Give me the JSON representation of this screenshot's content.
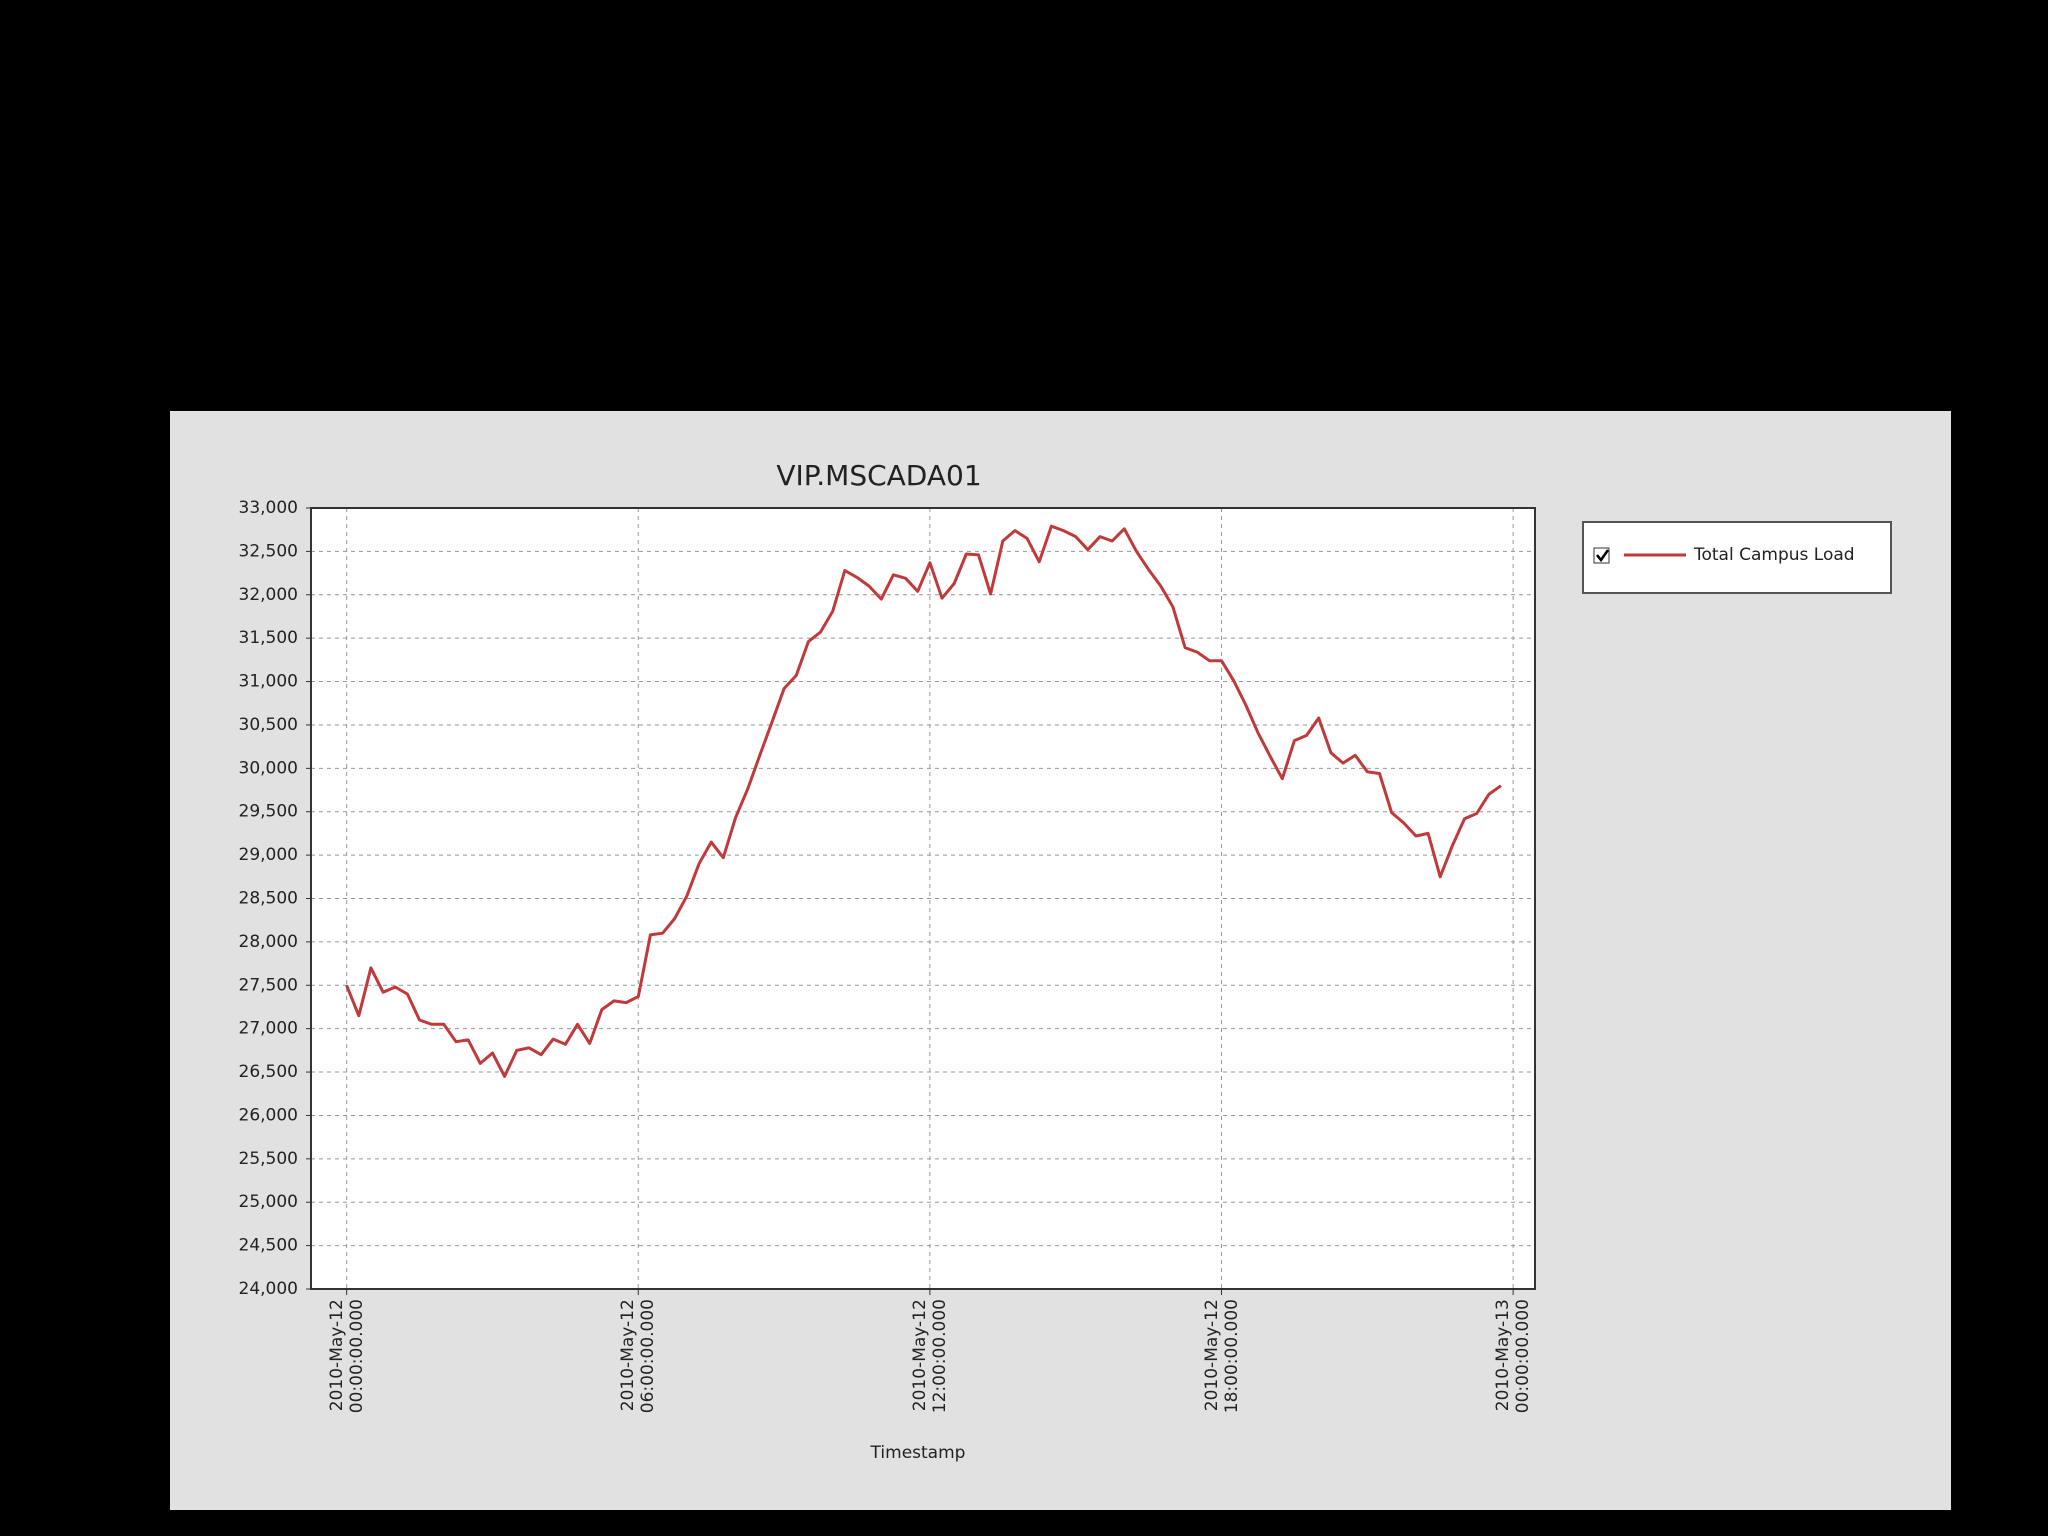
{
  "chart_data": {
    "type": "line",
    "title": "VIP.MSCADA01",
    "x_label": "Timestamp",
    "x": [
      "2010-05-12 00:00:00",
      "2010-05-12 00:15:00",
      "2010-05-12 00:30:00",
      "2010-05-12 00:45:00",
      "2010-05-12 01:00:00",
      "2010-05-12 01:15:00",
      "2010-05-12 01:30:00",
      "2010-05-12 01:45:00",
      "2010-05-12 02:00:00",
      "2010-05-12 02:15:00",
      "2010-05-12 02:30:00",
      "2010-05-12 02:45:00",
      "2010-05-12 03:00:00",
      "2010-05-12 03:15:00",
      "2010-05-12 03:30:00",
      "2010-05-12 03:45:00",
      "2010-05-12 04:00:00",
      "2010-05-12 04:15:00",
      "2010-05-12 04:30:00",
      "2010-05-12 04:45:00",
      "2010-05-12 05:00:00",
      "2010-05-12 05:15:00",
      "2010-05-12 05:30:00",
      "2010-05-12 05:45:00",
      "2010-05-12 06:00:00",
      "2010-05-12 06:15:00",
      "2010-05-12 06:30:00",
      "2010-05-12 06:45:00",
      "2010-05-12 07:00:00",
      "2010-05-12 07:15:00",
      "2010-05-12 07:30:00",
      "2010-05-12 07:45:00",
      "2010-05-12 08:00:00",
      "2010-05-12 08:15:00",
      "2010-05-12 08:30:00",
      "2010-05-12 08:45:00",
      "2010-05-12 09:00:00",
      "2010-05-12 09:15:00",
      "2010-05-12 09:30:00",
      "2010-05-12 09:45:00",
      "2010-05-12 10:00:00",
      "2010-05-12 10:15:00",
      "2010-05-12 10:30:00",
      "2010-05-12 10:45:00",
      "2010-05-12 11:00:00",
      "2010-05-12 11:15:00",
      "2010-05-12 11:30:00",
      "2010-05-12 11:45:00",
      "2010-05-12 12:00:00",
      "2010-05-12 12:15:00",
      "2010-05-12 12:30:00",
      "2010-05-12 12:45:00",
      "2010-05-12 13:00:00",
      "2010-05-12 13:15:00",
      "2010-05-12 13:30:00",
      "2010-05-12 13:45:00",
      "2010-05-12 14:00:00",
      "2010-05-12 14:15:00",
      "2010-05-12 14:30:00",
      "2010-05-12 14:45:00",
      "2010-05-12 15:00:00",
      "2010-05-12 15:15:00",
      "2010-05-12 15:30:00",
      "2010-05-12 15:45:00",
      "2010-05-12 16:00:00",
      "2010-05-12 16:15:00",
      "2010-05-12 16:30:00",
      "2010-05-12 16:45:00",
      "2010-05-12 17:00:00",
      "2010-05-12 17:15:00",
      "2010-05-12 17:30:00",
      "2010-05-12 17:45:00",
      "2010-05-12 18:00:00",
      "2010-05-12 18:15:00",
      "2010-05-12 18:30:00",
      "2010-05-12 18:45:00",
      "2010-05-12 19:00:00",
      "2010-05-12 19:15:00",
      "2010-05-12 19:30:00",
      "2010-05-12 19:45:00",
      "2010-05-12 20:00:00",
      "2010-05-12 20:15:00",
      "2010-05-12 20:30:00",
      "2010-05-12 20:45:00",
      "2010-05-12 21:00:00",
      "2010-05-12 21:15:00",
      "2010-05-12 21:30:00",
      "2010-05-12 21:45:00",
      "2010-05-12 22:00:00",
      "2010-05-12 22:15:00",
      "2010-05-12 22:30:00",
      "2010-05-12 22:45:00",
      "2010-05-12 23:00:00",
      "2010-05-12 23:15:00",
      "2010-05-12 23:30:00",
      "2010-05-12 23:45:00"
    ],
    "series": [
      {
        "name": "Total Campus Load",
        "color": "#c0393b",
        "values": [
          27500,
          27150,
          27700,
          27420,
          27480,
          27400,
          27100,
          27050,
          27050,
          26850,
          26870,
          26600,
          26720,
          26450,
          26750,
          26780,
          26700,
          26880,
          26820,
          27050,
          26830,
          27220,
          27320,
          27300,
          27370,
          28080,
          28100,
          28270,
          28530,
          28900,
          29150,
          28970,
          29430,
          29760,
          30150,
          30530,
          30920,
          31070,
          31460,
          31570,
          31810,
          32280,
          32200,
          32100,
          31950,
          32230,
          32190,
          32040,
          32370,
          31960,
          32130,
          32470,
          32460,
          32010,
          32620,
          32740,
          32650,
          32380,
          32790,
          32740,
          32670,
          32520,
          32670,
          32620,
          32760,
          32500,
          32290,
          32100,
          31860,
          31390,
          31340,
          31240,
          31240,
          31010,
          30730,
          30410,
          30140,
          29880,
          30320,
          30380,
          30580,
          30180,
          30060,
          30150,
          29960,
          29940,
          29490,
          29370,
          29220,
          29250,
          28750,
          29110,
          29420,
          29480,
          29700,
          29800
        ]
      }
    ],
    "xlim": [
      "2010-05-11 23:16:00",
      "2010-05-13 00:27:00"
    ],
    "xticks": [
      {
        "value": "2010-05-12 00:00:00",
        "label": "2010-May-12\n00:00:00.000"
      },
      {
        "value": "2010-05-12 06:00:00",
        "label": "2010-May-12\n06:00:00.000"
      },
      {
        "value": "2010-05-12 12:00:00",
        "label": "2010-May-12\n12:00:00.000"
      },
      {
        "value": "2010-05-12 18:00:00",
        "label": "2010-May-12\n18:00:00.000"
      },
      {
        "value": "2010-05-13 00:00:00",
        "label": "2010-May-13\n00:00:00.000"
      }
    ],
    "ylim": [
      24000,
      33000
    ],
    "yticks": [
      {
        "value": 24000,
        "label": "24,000"
      },
      {
        "value": 24500,
        "label": "24,500"
      },
      {
        "value": 25000,
        "label": "25,000"
      },
      {
        "value": 25500,
        "label": "25,500"
      },
      {
        "value": 26000,
        "label": "26,000"
      },
      {
        "value": 26500,
        "label": "26,500"
      },
      {
        "value": 27000,
        "label": "27,000"
      },
      {
        "value": 27500,
        "label": "27,500"
      },
      {
        "value": 28000,
        "label": "28,000"
      },
      {
        "value": 28500,
        "label": "28,500"
      },
      {
        "value": 29000,
        "label": "29,000"
      },
      {
        "value": 29500,
        "label": "29,500"
      },
      {
        "value": 30000,
        "label": "30,000"
      },
      {
        "value": 30500,
        "label": "30,500"
      },
      {
        "value": 31000,
        "label": "31,000"
      },
      {
        "value": 31500,
        "label": "31,500"
      },
      {
        "value": 32000,
        "label": "32,000"
      },
      {
        "value": 32500,
        "label": "32,500"
      },
      {
        "value": 33000,
        "label": "33,000"
      }
    ],
    "grid": true,
    "legend": "right"
  }
}
